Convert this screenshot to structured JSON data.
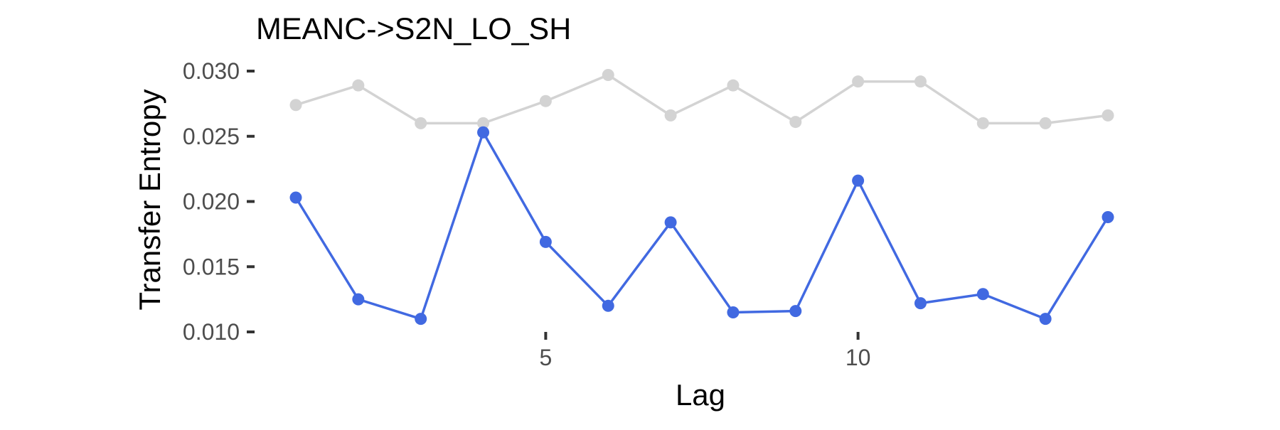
{
  "chart_data": {
    "type": "line",
    "title": "MEANC->S2N_LO_SH",
    "xlabel": "Lag",
    "ylabel": "Transfer Entropy",
    "xlim": [
      1,
      14
    ],
    "ylim": [
      0.01,
      0.03
    ],
    "x_ticks": [
      5,
      10
    ],
    "x_tick_labels": [
      "5",
      "10"
    ],
    "y_ticks": [
      0.01,
      0.015,
      0.02,
      0.025,
      0.03
    ],
    "y_tick_labels": [
      "0.010",
      "0.015",
      "0.020",
      "0.025",
      "0.030"
    ],
    "grid": false,
    "legend": "none",
    "x": [
      1,
      2,
      3,
      4,
      5,
      6,
      7,
      8,
      9,
      10,
      11,
      12,
      13,
      14
    ],
    "series": [
      {
        "color": "#d3d3d3",
        "values": [
          0.0274,
          0.0289,
          0.026,
          0.026,
          0.0277,
          0.0297,
          0.0266,
          0.0289,
          0.0261,
          0.0292,
          0.0292,
          0.026,
          0.026,
          0.0266
        ]
      },
      {
        "color": "#4169e1",
        "values": [
          0.0203,
          0.0125,
          0.011,
          0.0253,
          0.0169,
          0.012,
          0.0184,
          0.0115,
          0.0116,
          0.0216,
          0.0122,
          0.0129,
          0.011,
          0.0188
        ]
      }
    ]
  }
}
